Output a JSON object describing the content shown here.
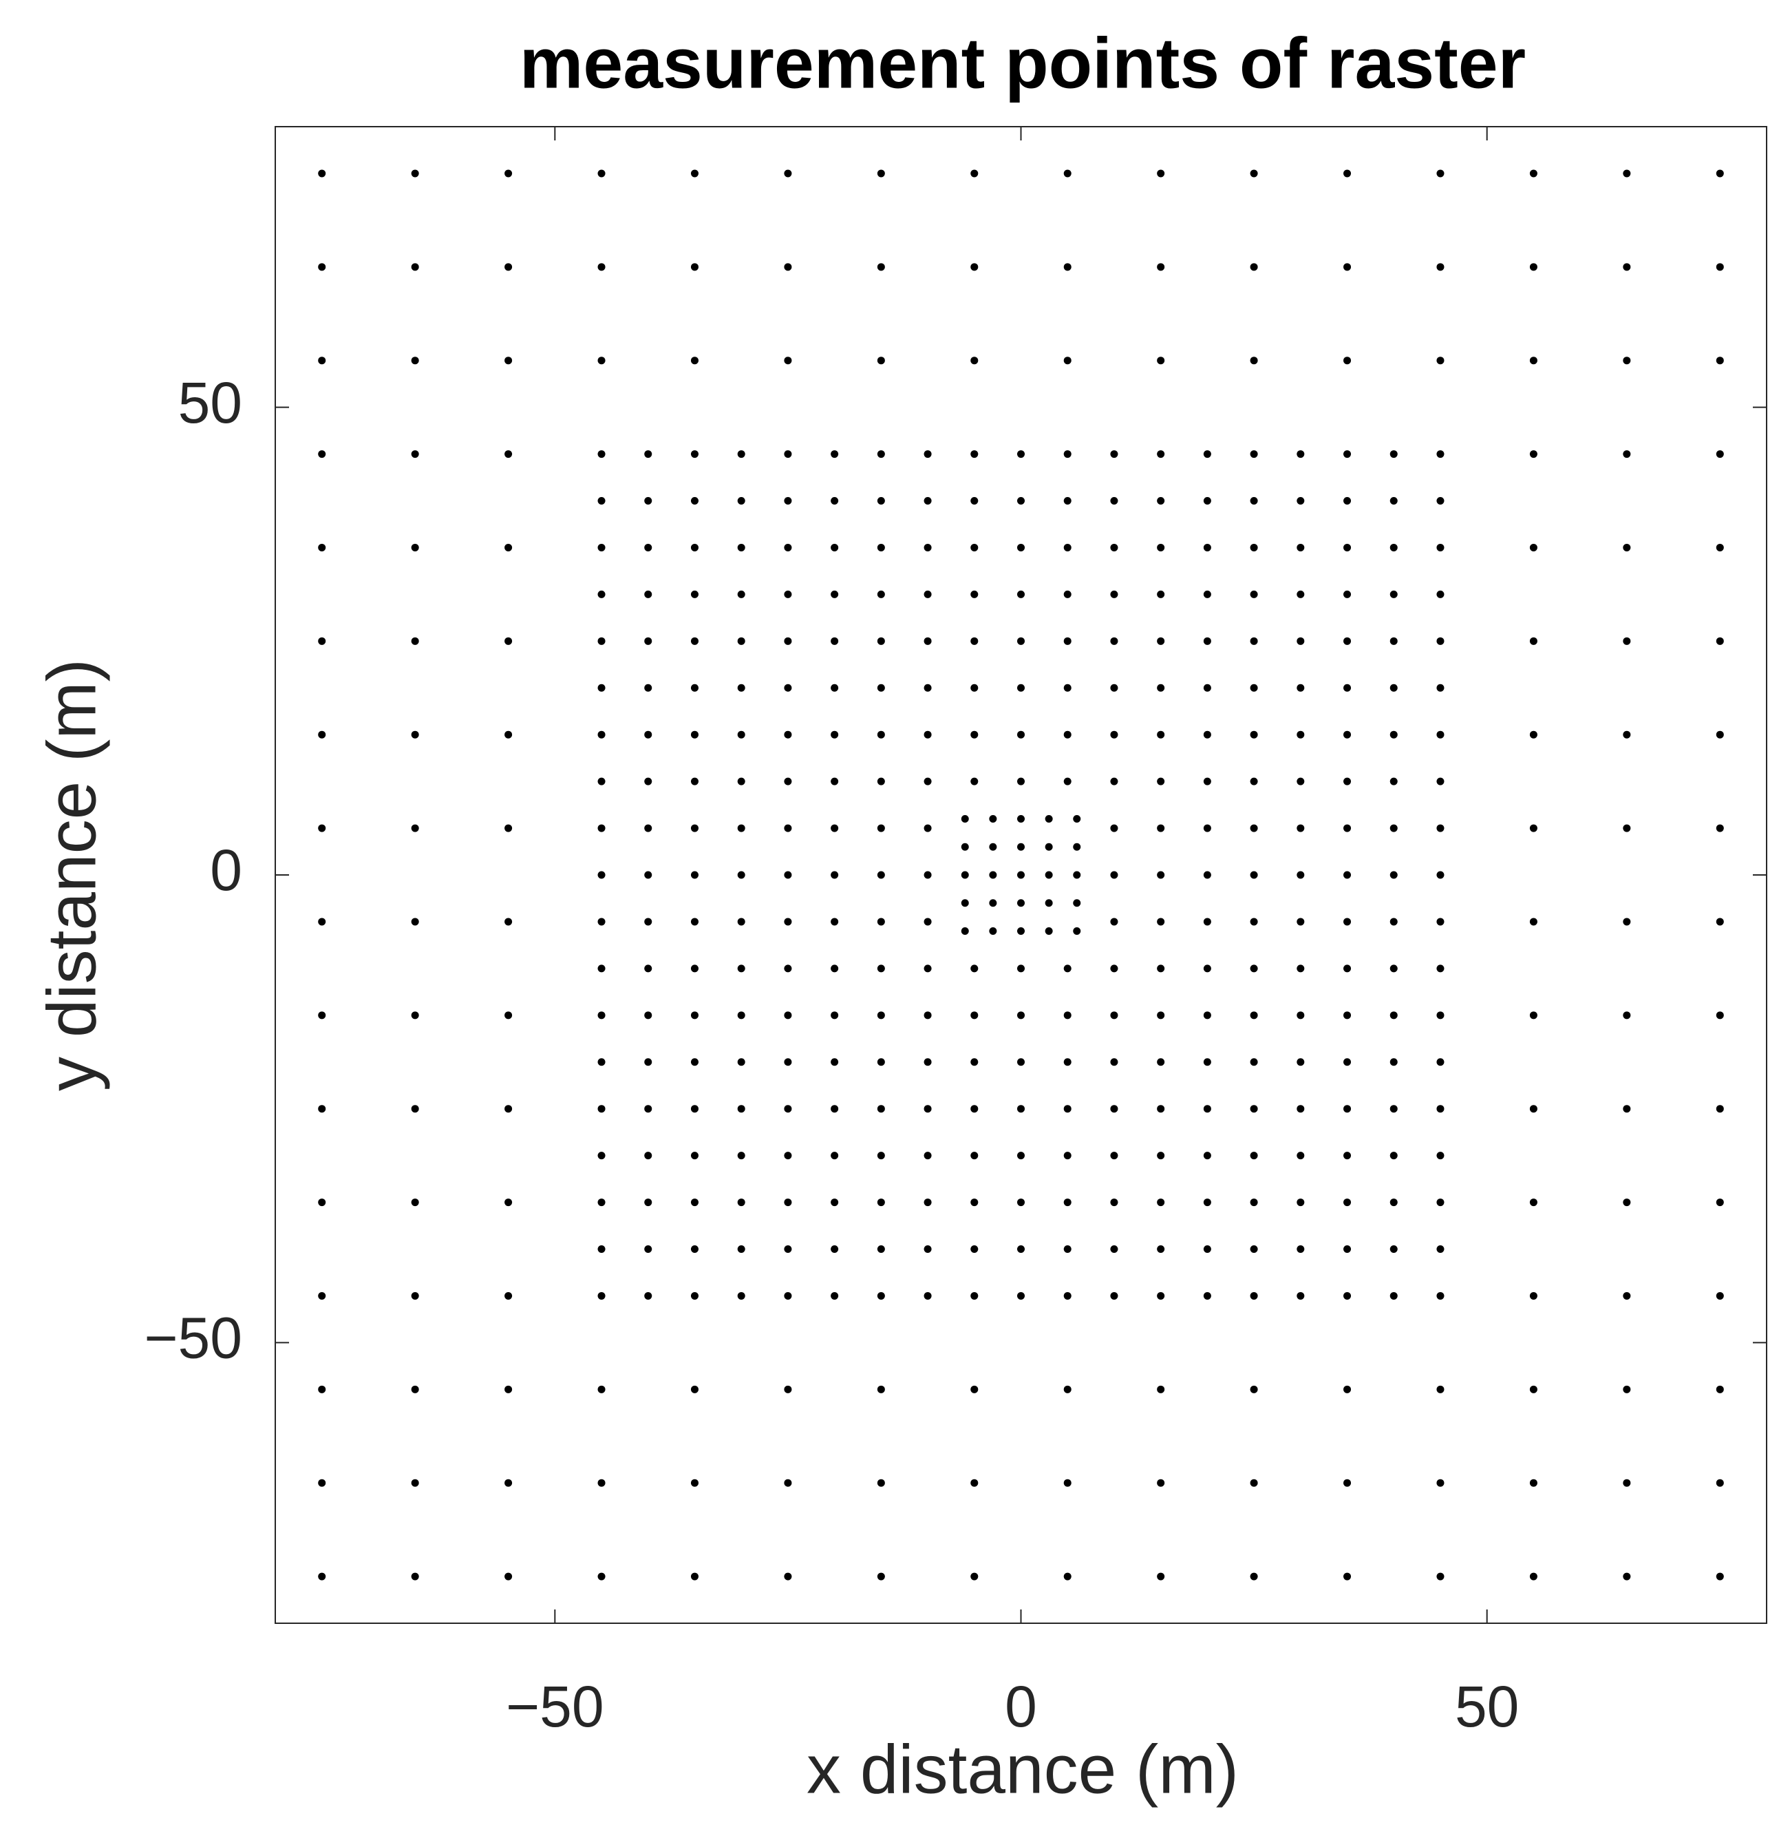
{
  "chart_data": {
    "type": "scatter",
    "title": "measurement points of raster",
    "x_label": "x distance (m)",
    "y_label": "y distance (m)",
    "xlim": [
      -80,
      80
    ],
    "ylim": [
      -80,
      80
    ],
    "xticks": [
      {
        "value": -50,
        "label": "−50"
      },
      0,
      50
    ],
    "yticks": [
      {
        "value": -50,
        "label": "−50"
      },
      0,
      50
    ],
    "grid": false,
    "series": [
      {
        "color": "#000000",
        "x": [
          -75,
          -65,
          -55,
          -45,
          -35,
          -25,
          -15,
          -5,
          5,
          15,
          25,
          35,
          45,
          55,
          65,
          75,
          -75,
          -65,
          -55,
          -45,
          -35,
          -25,
          -15,
          -5,
          5,
          15,
          25,
          35,
          45,
          55,
          65,
          75,
          -75,
          -65,
          -55,
          -45,
          -35,
          -25,
          -15,
          -5,
          5,
          15,
          25,
          35,
          45,
          55,
          65,
          75,
          -75,
          -65,
          -55,
          55,
          65,
          75,
          -75,
          -65,
          -55,
          55,
          65,
          75,
          -75,
          -65,
          -55,
          55,
          65,
          75,
          -75,
          -65,
          -55,
          55,
          65,
          75,
          -75,
          -65,
          -55,
          55,
          65,
          75,
          -75,
          -65,
          -55,
          55,
          65,
          75,
          -75,
          -65,
          -55,
          55,
          65,
          75,
          -75,
          -65,
          -55,
          55,
          65,
          75,
          -75,
          -65,
          -55,
          55,
          65,
          75,
          -75,
          -65,
          -55,
          55,
          65,
          75,
          -75,
          -65,
          -55,
          -45,
          -35,
          -25,
          -15,
          -5,
          5,
          15,
          25,
          35,
          45,
          55,
          65,
          75,
          -75,
          -65,
          -55,
          -45,
          -35,
          -25,
          -15,
          -5,
          5,
          15,
          25,
          35,
          45,
          55,
          65,
          75,
          -75,
          -65,
          -55,
          -45,
          -35,
          -25,
          -15,
          -5,
          5,
          15,
          25,
          35,
          45,
          55,
          65,
          75
        ],
        "y": [
          75,
          75,
          75,
          75,
          75,
          75,
          75,
          75,
          75,
          75,
          75,
          75,
          75,
          75,
          75,
          75,
          65,
          65,
          65,
          65,
          65,
          65,
          65,
          65,
          65,
          65,
          65,
          65,
          65,
          65,
          65,
          65,
          55,
          55,
          55,
          55,
          55,
          55,
          55,
          55,
          55,
          55,
          55,
          55,
          55,
          55,
          55,
          55,
          45,
          45,
          45,
          45,
          45,
          45,
          35,
          35,
          35,
          35,
          35,
          35,
          25,
          25,
          25,
          25,
          25,
          25,
          15,
          15,
          15,
          15,
          15,
          15,
          5,
          5,
          5,
          5,
          5,
          5,
          -5,
          -5,
          -5,
          -5,
          -5,
          -5,
          -15,
          -15,
          -15,
          -15,
          -15,
          -15,
          -25,
          -25,
          -25,
          -25,
          -25,
          -25,
          -35,
          -35,
          -35,
          -35,
          -35,
          -35,
          -45,
          -45,
          -45,
          -45,
          -45,
          -45,
          -55,
          -55,
          -55,
          -55,
          -55,
          -55,
          -55,
          -55,
          -55,
          -55,
          -55,
          -55,
          -55,
          -55,
          -55,
          -55,
          -65,
          -65,
          -65,
          -65,
          -65,
          -65,
          -65,
          -65,
          -65,
          -65,
          -65,
          -65,
          -65,
          -65,
          -65,
          -65,
          -75,
          -75,
          -75,
          -75,
          -75,
          -75,
          -75,
          -75,
          -75,
          -75,
          -75,
          -75,
          -75,
          -75,
          -75,
          -75
        ]
      },
      {
        "color": "#000000",
        "x": [
          -45,
          -40,
          -35,
          -30,
          -25,
          -20,
          -15,
          -10,
          -5,
          0,
          5,
          10,
          15,
          20,
          25,
          30,
          35,
          40,
          45,
          -45,
          -40,
          -35,
          -30,
          -25,
          -20,
          -15,
          -10,
          -5,
          0,
          5,
          10,
          15,
          20,
          25,
          30,
          35,
          40,
          45,
          -45,
          -40,
          -35,
          -30,
          -25,
          -20,
          -15,
          -10,
          -5,
          0,
          5,
          10,
          15,
          20,
          25,
          30,
          35,
          40,
          45,
          -45,
          -40,
          -35,
          -30,
          -25,
          -20,
          -15,
          -10,
          -5,
          0,
          5,
          10,
          15,
          20,
          25,
          30,
          35,
          40,
          45,
          -45,
          -40,
          -35,
          -30,
          -25,
          -20,
          -15,
          -10,
          -5,
          0,
          5,
          10,
          15,
          20,
          25,
          30,
          35,
          40,
          45,
          -45,
          -40,
          -35,
          -30,
          -25,
          -20,
          -15,
          -10,
          -5,
          0,
          5,
          10,
          15,
          20,
          25,
          30,
          35,
          40,
          45,
          -45,
          -40,
          -35,
          -30,
          -25,
          -20,
          -15,
          -10,
          -5,
          0,
          5,
          10,
          15,
          20,
          25,
          30,
          35,
          40,
          45,
          -45,
          -40,
          -35,
          -30,
          -25,
          -20,
          -15,
          -10,
          -5,
          0,
          5,
          10,
          15,
          20,
          25,
          30,
          35,
          40,
          45,
          -45,
          -40,
          -35,
          -30,
          -25,
          -20,
          -15,
          -10,
          10,
          15,
          20,
          25,
          30,
          35,
          40,
          45,
          -45,
          -40,
          -35,
          -30,
          -25,
          -20,
          -15,
          -10,
          10,
          15,
          20,
          25,
          30,
          35,
          40,
          45,
          -45,
          -40,
          -35,
          -30,
          -25,
          -20,
          -15,
          -10,
          10,
          15,
          20,
          25,
          30,
          35,
          40,
          45,
          -45,
          -40,
          -35,
          -30,
          -25,
          -20,
          -15,
          -10,
          -5,
          0,
          5,
          10,
          15,
          20,
          25,
          30,
          35,
          40,
          45,
          -45,
          -40,
          -35,
          -30,
          -25,
          -20,
          -15,
          -10,
          -5,
          0,
          5,
          10,
          15,
          20,
          25,
          30,
          35,
          40,
          45,
          -45,
          -40,
          -35,
          -30,
          -25,
          -20,
          -15,
          -10,
          -5,
          0,
          5,
          10,
          15,
          20,
          25,
          30,
          35,
          40,
          45,
          -45,
          -40,
          -35,
          -30,
          -25,
          -20,
          -15,
          -10,
          -5,
          0,
          5,
          10,
          15,
          20,
          25,
          30,
          35,
          40,
          45,
          -45,
          -40,
          -35,
          -30,
          -25,
          -20,
          -15,
          -10,
          -5,
          0,
          5,
          10,
          15,
          20,
          25,
          30,
          35,
          40,
          45,
          -45,
          -40,
          -35,
          -30,
          -25,
          -20,
          -15,
          -10,
          -5,
          0,
          5,
          10,
          15,
          20,
          25,
          30,
          35,
          40,
          45,
          -45,
          -40,
          -35,
          -30,
          -25,
          -20,
          -15,
          -10,
          -5,
          0,
          5,
          10,
          15,
          20,
          25,
          30,
          35,
          40,
          45,
          -45,
          -40,
          -35,
          -30,
          -25,
          -20,
          -15,
          -10,
          -5,
          0,
          5,
          10,
          15,
          20,
          25,
          30,
          35,
          40,
          45
        ],
        "y": [
          45,
          45,
          45,
          45,
          45,
          45,
          45,
          45,
          45,
          45,
          45,
          45,
          45,
          45,
          45,
          45,
          45,
          45,
          45,
          40,
          40,
          40,
          40,
          40,
          40,
          40,
          40,
          40,
          40,
          40,
          40,
          40,
          40,
          40,
          40,
          40,
          40,
          40,
          35,
          35,
          35,
          35,
          35,
          35,
          35,
          35,
          35,
          35,
          35,
          35,
          35,
          35,
          35,
          35,
          35,
          35,
          35,
          30,
          30,
          30,
          30,
          30,
          30,
          30,
          30,
          30,
          30,
          30,
          30,
          30,
          30,
          30,
          30,
          30,
          30,
          30,
          25,
          25,
          25,
          25,
          25,
          25,
          25,
          25,
          25,
          25,
          25,
          25,
          25,
          25,
          25,
          25,
          25,
          25,
          25,
          20,
          20,
          20,
          20,
          20,
          20,
          20,
          20,
          20,
          20,
          20,
          20,
          20,
          20,
          20,
          20,
          20,
          20,
          20,
          15,
          15,
          15,
          15,
          15,
          15,
          15,
          15,
          15,
          15,
          15,
          15,
          15,
          15,
          15,
          15,
          15,
          15,
          15,
          10,
          10,
          10,
          10,
          10,
          10,
          10,
          10,
          10,
          10,
          10,
          10,
          10,
          10,
          10,
          10,
          10,
          10,
          10,
          5,
          5,
          5,
          5,
          5,
          5,
          5,
          5,
          5,
          5,
          5,
          5,
          5,
          5,
          5,
          5,
          0,
          0,
          0,
          0,
          0,
          0,
          0,
          0,
          0,
          0,
          0,
          0,
          0,
          0,
          0,
          0,
          -5,
          -5,
          -5,
          -5,
          -5,
          -5,
          -5,
          -5,
          -5,
          -5,
          -5,
          -5,
          -5,
          -5,
          -5,
          -5,
          -10,
          -10,
          -10,
          -10,
          -10,
          -10,
          -10,
          -10,
          -10,
          -10,
          -10,
          -10,
          -10,
          -10,
          -10,
          -10,
          -10,
          -10,
          -10,
          -15,
          -15,
          -15,
          -15,
          -15,
          -15,
          -15,
          -15,
          -15,
          -15,
          -15,
          -15,
          -15,
          -15,
          -15,
          -15,
          -15,
          -15,
          -15,
          -20,
          -20,
          -20,
          -20,
          -20,
          -20,
          -20,
          -20,
          -20,
          -20,
          -20,
          -20,
          -20,
          -20,
          -20,
          -20,
          -20,
          -20,
          -20,
          -25,
          -25,
          -25,
          -25,
          -25,
          -25,
          -25,
          -25,
          -25,
          -25,
          -25,
          -25,
          -25,
          -25,
          -25,
          -25,
          -25,
          -25,
          -25,
          -30,
          -30,
          -30,
          -30,
          -30,
          -30,
          -30,
          -30,
          -30,
          -30,
          -30,
          -30,
          -30,
          -30,
          -30,
          -30,
          -30,
          -30,
          -30,
          -35,
          -35,
          -35,
          -35,
          -35,
          -35,
          -35,
          -35,
          -35,
          -35,
          -35,
          -35,
          -35,
          -35,
          -35,
          -35,
          -35,
          -35,
          -35,
          -40,
          -40,
          -40,
          -40,
          -40,
          -40,
          -40,
          -40,
          -40,
          -40,
          -40,
          -40,
          -40,
          -40,
          -40,
          -40,
          -40,
          -40,
          -40,
          -45,
          -45,
          -45,
          -45,
          -45,
          -45,
          -45,
          -45,
          -45,
          -45,
          -45,
          -45,
          -45,
          -45,
          -45,
          -45,
          -45,
          -45,
          -45
        ]
      },
      {
        "color": "#000000",
        "x": [
          -6,
          -3,
          0,
          3,
          6,
          -6,
          -3,
          0,
          3,
          6,
          -6,
          -3,
          0,
          3,
          6,
          -6,
          -3,
          0,
          3,
          6,
          -6,
          -3,
          0,
          3,
          6
        ],
        "y": [
          6,
          6,
          6,
          6,
          6,
          3,
          3,
          3,
          3,
          3,
          0,
          0,
          0,
          0,
          0,
          -3,
          -3,
          -3,
          -3,
          -3,
          -6,
          -6,
          -6,
          -6,
          -6
        ]
      }
    ]
  }
}
